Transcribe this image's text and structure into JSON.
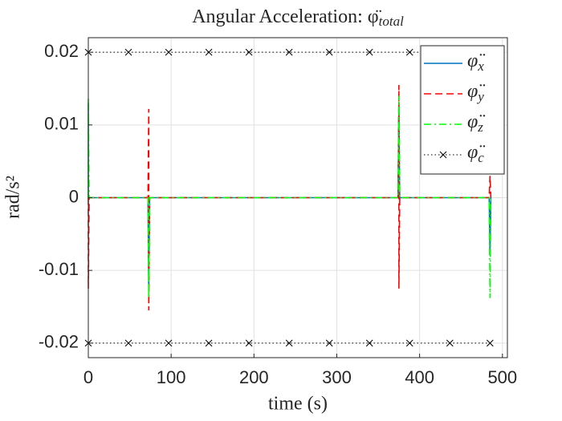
{
  "chart_data": {
    "type": "line",
    "title": "Angular Acceleration: φ̈",
    "title_subscript": "total",
    "xlabel": "time (s)",
    "ylabel": "rad/s²",
    "xlim": [
      0,
      506
    ],
    "xticks": [
      0,
      100,
      200,
      300,
      400,
      500
    ],
    "ylim": [
      -0.022,
      0.022
    ],
    "yticks": [
      -0.02,
      -0.01,
      0,
      0.01,
      0.02
    ],
    "grid": true,
    "legend": "northeast",
    "series": [
      {
        "name": "φ̈",
        "subscript": "x",
        "color": "#0072bd",
        "linestyle": "solid",
        "x": [
          0,
          0,
          1,
          72,
          73,
          74,
          374,
          375,
          376,
          484,
          485,
          486
        ],
        "values": [
          0.013,
          0,
          0,
          0,
          -0.013,
          0,
          0,
          0.013,
          0,
          0,
          -0.008,
          0
        ]
      },
      {
        "name": "φ̈",
        "subscript": "y",
        "color": "#ff0000",
        "linestyle": "dashed",
        "x": [
          0,
          0,
          1,
          72,
          73,
          73,
          74,
          374,
          375,
          375,
          376,
          484,
          485,
          486
        ],
        "values": [
          0,
          -0.0125,
          0,
          0,
          0.0122,
          -0.0155,
          0,
          0,
          0.0155,
          -0.0125,
          0,
          0,
          0.003,
          0
        ]
      },
      {
        "name": "φ̈",
        "subscript": "z",
        "color": "#00ff00",
        "linestyle": "dashdot",
        "x": [
          0,
          0,
          1,
          72,
          73,
          74,
          374,
          375,
          376,
          484,
          485,
          486
        ],
        "values": [
          0,
          0.0138,
          0,
          0,
          -0.0138,
          0,
          0,
          0.014,
          0,
          0,
          -0.0138,
          0
        ]
      },
      {
        "name": "φ̈",
        "subscript": "c",
        "color": "#000000",
        "linestyle": "dotted",
        "marker": "x",
        "x": [
          0,
          48.5,
          97,
          145.5,
          194,
          242.5,
          291,
          339.5,
          388,
          436.5,
          485,
          null,
          0,
          48.5,
          97,
          145.5,
          194,
          242.5,
          291,
          339.5,
          388,
          436.5,
          485
        ],
        "values": [
          0.02,
          0.02,
          0.02,
          0.02,
          0.02,
          0.02,
          0.02,
          0.02,
          0.02,
          0.02,
          0.02,
          null,
          -0.02,
          -0.02,
          -0.02,
          -0.02,
          -0.02,
          -0.02,
          -0.02,
          -0.02,
          -0.02,
          -0.02,
          -0.02
        ]
      }
    ]
  }
}
